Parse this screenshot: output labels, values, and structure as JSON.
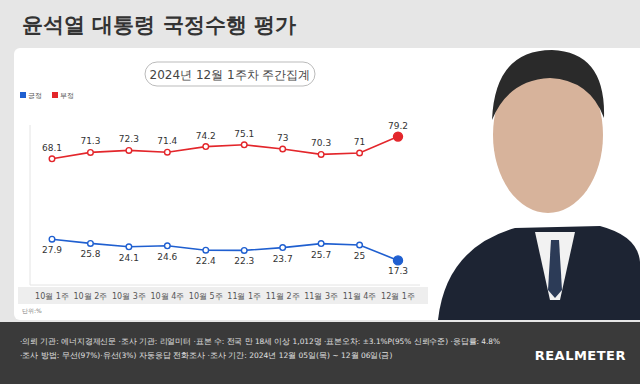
{
  "chart_data": {
    "type": "line",
    "title": "윤석열 대통령 국정수행 평가",
    "subtitle": "2024년 12월 1주차 주간집계",
    "categories": [
      "10월 1주",
      "10월 2주",
      "10월 3주",
      "10월 4주",
      "10월 5주",
      "11월 1주",
      "11월 2주",
      "11월 3주",
      "11월 4주",
      "12월 1주"
    ],
    "series": [
      {
        "name": "긍정",
        "color": "#1f5fd0",
        "values": [
          27.9,
          25.8,
          24.1,
          24.6,
          22.4,
          22.3,
          23.7,
          25.7,
          25.0,
          17.3
        ]
      },
      {
        "name": "부정",
        "color": "#e3262b",
        "values": [
          68.1,
          71.3,
          72.3,
          71.4,
          74.2,
          75.1,
          73.0,
          70.3,
          71.0,
          79.2
        ]
      }
    ],
    "ylim": [
      5,
      85
    ],
    "tick_labels": "x",
    "data_labels": true,
    "marker": "circle",
    "legend": "top-left",
    "annotations": [
      "단위:%"
    ]
  },
  "footer": {
    "lines": [
      "·의뢰 기관: 에너지경제신문 ·조사 기관: 리얼미터 ·표본 수: 전국 만 18세 이상 1,012명 ·표본오차: ±3.1%P(95% 신뢰수준) ·응답률: 4.8%",
      "·조사 방법: 무선(97%)·유선(3%) 자동응답 전화조사 ·조사 기간: 2024년 12월 05일(목) ~ 12월 06일(금)"
    ],
    "brand": "REALMETER"
  }
}
